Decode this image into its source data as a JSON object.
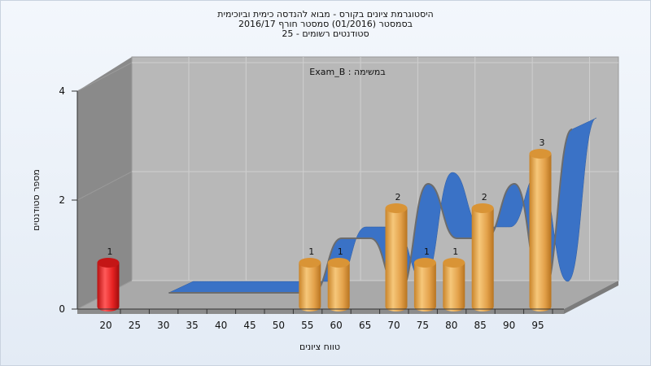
{
  "colors": {
    "normal_bar": "#e0a24a",
    "highlight_bar": "#e62222",
    "curve": "#3a72c6",
    "plot_bg": "#b8b8b8"
  },
  "chart_data": {
    "type": "bar",
    "title_lines": [
      "היסטוגרמת ציונים בקורס - מבוא להנדסה כימית וביוכימית",
      "בסמסטר  (01/2016)  סמסטר חורף 2016/17",
      "סטודנטים רשומים - 25"
    ],
    "annotation": "Exam_B : במשימה",
    "xlabel": "טווח ציונים",
    "ylabel": "מספר סטודנטים",
    "categories": [
      "20",
      "25",
      "30",
      "35",
      "40",
      "45",
      "50",
      "55",
      "60",
      "65",
      "70",
      "75",
      "80",
      "85",
      "90",
      "95"
    ],
    "values": [
      1,
      0,
      0,
      0,
      0,
      0,
      0,
      1,
      1,
      0,
      2,
      1,
      1,
      2,
      0,
      3
    ],
    "highlight_category": "20",
    "yticks": [
      0,
      2,
      4
    ],
    "ylim": [
      0,
      4
    ],
    "grid": true,
    "trend_curve": true
  }
}
